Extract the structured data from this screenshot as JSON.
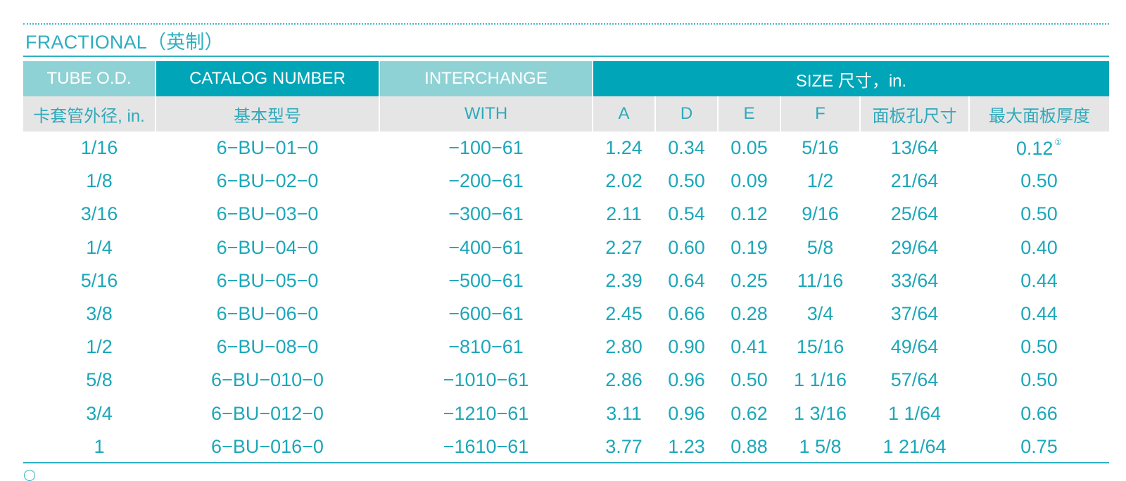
{
  "section_title": "FRACTIONAL（英制）",
  "header_row1": {
    "tube_od": "TUBE O.D.",
    "catalog_number": "CATALOG NUMBER",
    "interchange": "INTERCHANGE",
    "size": "SIZE 尺寸，in."
  },
  "header_row2": {
    "tube_od": "卡套管外径, in.",
    "catalog_number": "基本型号",
    "interchange": "WITH",
    "a": "A",
    "d": "D",
    "e": "E",
    "f": "F",
    "panel_hole": "面板孔尺寸",
    "max_panel_thickness": "最大面板厚度"
  },
  "footnote_marker": "①",
  "rows": [
    {
      "od": "1/16",
      "catalog": "6−BU−01−0",
      "interchange": "−100−61",
      "a": "1.24",
      "d": "0.34",
      "e": "0.05",
      "f": "5/16",
      "hole": "13/64",
      "thickness": "0.12"
    },
    {
      "od": "1/8",
      "catalog": "6−BU−02−0",
      "interchange": "−200−61",
      "a": "2.02",
      "d": "0.50",
      "e": "0.09",
      "f": "1/2",
      "hole": "21/64",
      "thickness": "0.50"
    },
    {
      "od": "3/16",
      "catalog": "6−BU−03−0",
      "interchange": "−300−61",
      "a": "2.11",
      "d": "0.54",
      "e": "0.12",
      "f": "9/16",
      "hole": "25/64",
      "thickness": "0.50"
    },
    {
      "od": "1/4",
      "catalog": "6−BU−04−0",
      "interchange": "−400−61",
      "a": "2.27",
      "d": "0.60",
      "e": "0.19",
      "f": "5/8",
      "hole": "29/64",
      "thickness": "0.40"
    },
    {
      "od": "5/16",
      "catalog": "6−BU−05−0",
      "interchange": "−500−61",
      "a": "2.39",
      "d": "0.64",
      "e": "0.25",
      "f": "11/16",
      "hole": "33/64",
      "thickness": "0.44"
    },
    {
      "od": "3/8",
      "catalog": "6−BU−06−0",
      "interchange": "−600−61",
      "a": "2.45",
      "d": "0.66",
      "e": "0.28",
      "f": "3/4",
      "hole": "37/64",
      "thickness": "0.44"
    },
    {
      "od": "1/2",
      "catalog": "6−BU−08−0",
      "interchange": "−810−61",
      "a": "2.80",
      "d": "0.90",
      "e": "0.41",
      "f": "15/16",
      "hole": "49/64",
      "thickness": "0.50"
    },
    {
      "od": "5/8",
      "catalog": "6−BU−010−0",
      "interchange": "−1010−61",
      "a": "2.86",
      "d": "0.96",
      "e": "0.50",
      "f": "1 1/16",
      "hole": "57/64",
      "thickness": "0.50"
    },
    {
      "od": "3/4",
      "catalog": "6−BU−012−0",
      "interchange": "−1210−61",
      "a": "3.11",
      "d": "0.96",
      "e": "0.62",
      "f": "1  3/16",
      "hole": "1  1/64",
      "thickness": "0.66"
    },
    {
      "od": "1",
      "catalog": "6−BU−016−0",
      "interchange": "−1610−61",
      "a": "3.77",
      "d": "1.23",
      "e": "0.88",
      "f": "1  5/8",
      "hole": "1 21/64",
      "thickness": "0.75"
    }
  ],
  "colors": {
    "accent": "#00a5b8",
    "header_light": "#8fd2d5",
    "subheader_bg": "#e5e5e5",
    "text": "#1ca7b9"
  }
}
